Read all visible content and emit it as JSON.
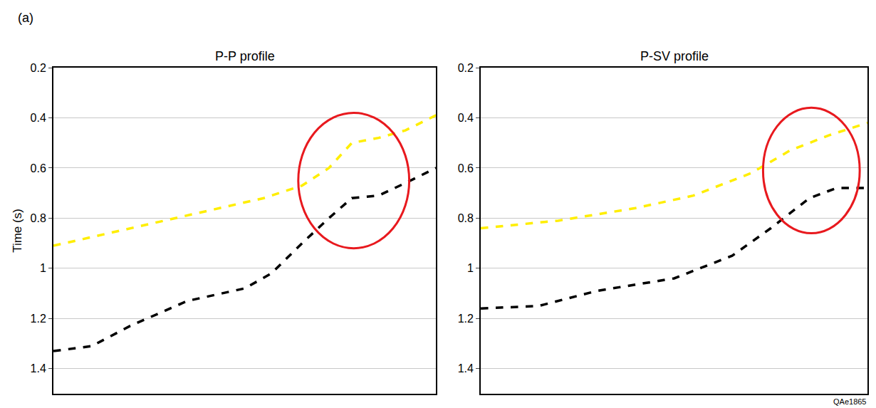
{
  "chart_data": [
    {
      "type": "line",
      "panel_label": "(a)",
      "title": "P-P profile",
      "y_label": "Time (s)",
      "xlim": [
        0,
        100
      ],
      "ylim": [
        1.5,
        0.2
      ],
      "yticks": [
        0.2,
        0.4,
        0.6,
        0.8,
        1.0,
        1.2,
        1.4
      ],
      "tick_labels": "y",
      "grid": true,
      "series": [
        {
          "color": "#ffee00",
          "line_style": "dashed",
          "x": [
            0,
            20,
            40,
            55,
            65,
            72,
            78,
            85,
            92,
            100
          ],
          "values": [
            0.91,
            0.84,
            0.77,
            0.72,
            0.67,
            0.6,
            0.5,
            0.48,
            0.45,
            0.39
          ]
        },
        {
          "color": "#000000",
          "line_style": "dashed",
          "x": [
            0,
            10,
            20,
            35,
            50,
            57,
            65,
            72,
            78,
            85,
            92,
            100
          ],
          "values": [
            1.33,
            1.31,
            1.23,
            1.13,
            1.08,
            1.02,
            0.9,
            0.8,
            0.72,
            0.71,
            0.66,
            0.6
          ]
        }
      ],
      "highlights": [
        {
          "x0": 64,
          "x1": 93,
          "y0": 0.38,
          "y1": 0.92,
          "color": "#e8191e"
        }
      ]
    },
    {
      "type": "line",
      "title": "P-SV profile",
      "annotation": "QAe1865",
      "xlim": [
        0,
        100
      ],
      "ylim": [
        1.5,
        0.2
      ],
      "yticks": [
        0.2,
        0.4,
        0.6,
        0.8,
        1.0,
        1.2,
        1.4
      ],
      "tick_labels": "y",
      "grid": true,
      "series": [
        {
          "color": "#ffee00",
          "line_style": "dashed",
          "x": [
            0,
            20,
            40,
            55,
            70,
            80,
            90,
            100
          ],
          "values": [
            0.84,
            0.81,
            0.76,
            0.71,
            0.62,
            0.53,
            0.47,
            0.42
          ]
        },
        {
          "color": "#000000",
          "line_style": "dashed",
          "x": [
            0,
            15,
            30,
            50,
            65,
            75,
            85,
            92,
            100
          ],
          "values": [
            1.16,
            1.15,
            1.09,
            1.04,
            0.95,
            0.84,
            0.72,
            0.68,
            0.68
          ]
        }
      ],
      "highlights": [
        {
          "x0": 73,
          "x1": 98,
          "y0": 0.36,
          "y1": 0.86,
          "color": "#e8191e"
        }
      ]
    }
  ]
}
